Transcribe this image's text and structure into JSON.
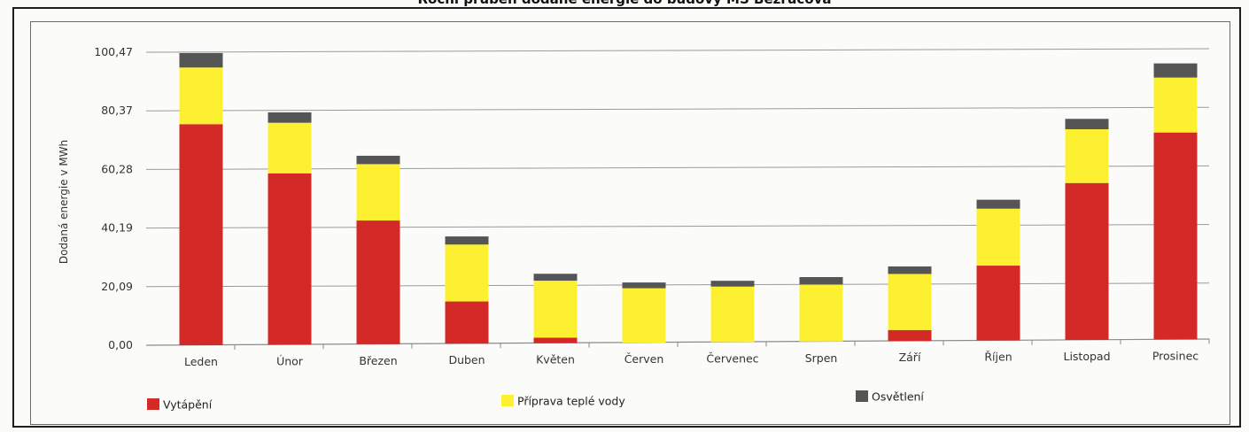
{
  "chart_data": {
    "type": "bar",
    "stacked": true,
    "title": "Roční průběh dodané energie do budovy MŠ Bezručova",
    "ylabel": "Dodaná energie v MWh",
    "xlabel": "",
    "ylim": [
      0,
      100.47
    ],
    "yticks": [
      "0,00",
      "20,09",
      "40,19",
      "60,28",
      "80,37",
      "100,47"
    ],
    "grid": true,
    "legend_position": "bottom",
    "categories": [
      "Leden",
      "Únor",
      "Březen",
      "Duben",
      "Květen",
      "Červen",
      "Červenec",
      "Srpen",
      "Září",
      "Říjen",
      "Listopad",
      "Prosinec"
    ],
    "series": [
      {
        "name": "Vytápění",
        "color": "#d42a27",
        "values": [
          76.5,
          59.3,
          42.8,
          14.6,
          1.9,
          0.0,
          0.0,
          0.0,
          3.8,
          25.9,
          54.3,
          71.6
        ]
      },
      {
        "name": "Příprava teplé vody",
        "color": "#fdf030",
        "values": [
          19.6,
          17.5,
          19.5,
          19.7,
          19.7,
          18.8,
          19.2,
          19.7,
          19.4,
          19.7,
          18.6,
          19.0
        ]
      },
      {
        "name": "Osvětlení",
        "color": "#555555",
        "values": [
          5.0,
          3.6,
          2.9,
          2.8,
          2.4,
          2.0,
          2.0,
          2.6,
          2.6,
          3.1,
          3.6,
          4.9
        ]
      }
    ]
  }
}
